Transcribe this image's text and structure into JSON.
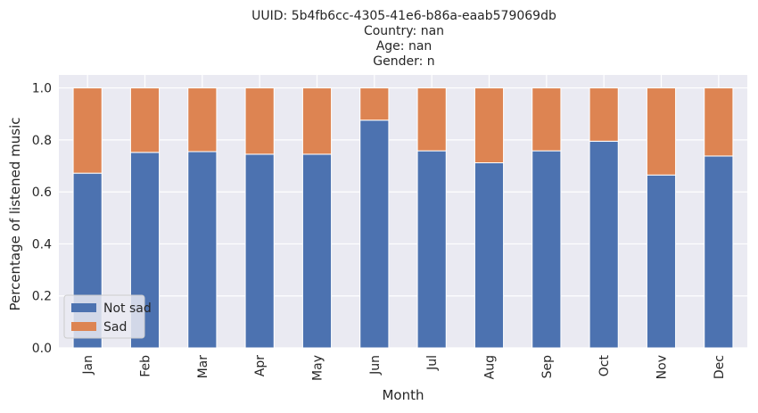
{
  "chart_data": {
    "type": "bar",
    "stacked": true,
    "title_lines": [
      "UUID: 5b4fb6cc-4305-41e6-b86a-eaab579069db",
      "Country: nan",
      "Age: nan",
      "Gender: n"
    ],
    "xlabel": "Month",
    "ylabel": "Percentage of listened music",
    "categories": [
      "Jan",
      "Feb",
      "Mar",
      "Apr",
      "May",
      "Jun",
      "Jul",
      "Aug",
      "Sep",
      "Oct",
      "Nov",
      "Dec"
    ],
    "series": [
      {
        "name": "Not sad",
        "color": "#4c72b0",
        "values": [
          0.672,
          0.752,
          0.755,
          0.745,
          0.745,
          0.876,
          0.758,
          0.712,
          0.758,
          0.795,
          0.665,
          0.738
        ]
      },
      {
        "name": "Sad",
        "color": "#dd8452",
        "values": [
          0.328,
          0.248,
          0.245,
          0.255,
          0.255,
          0.124,
          0.242,
          0.288,
          0.242,
          0.205,
          0.335,
          0.262
        ]
      }
    ],
    "ylim": [
      0,
      1.05
    ],
    "yticks": [
      "0.0",
      "0.2",
      "0.4",
      "0.6",
      "0.8",
      "1.0"
    ],
    "grid": true,
    "legend_position": "lower-left",
    "plot_background": "#eaeaf2"
  }
}
